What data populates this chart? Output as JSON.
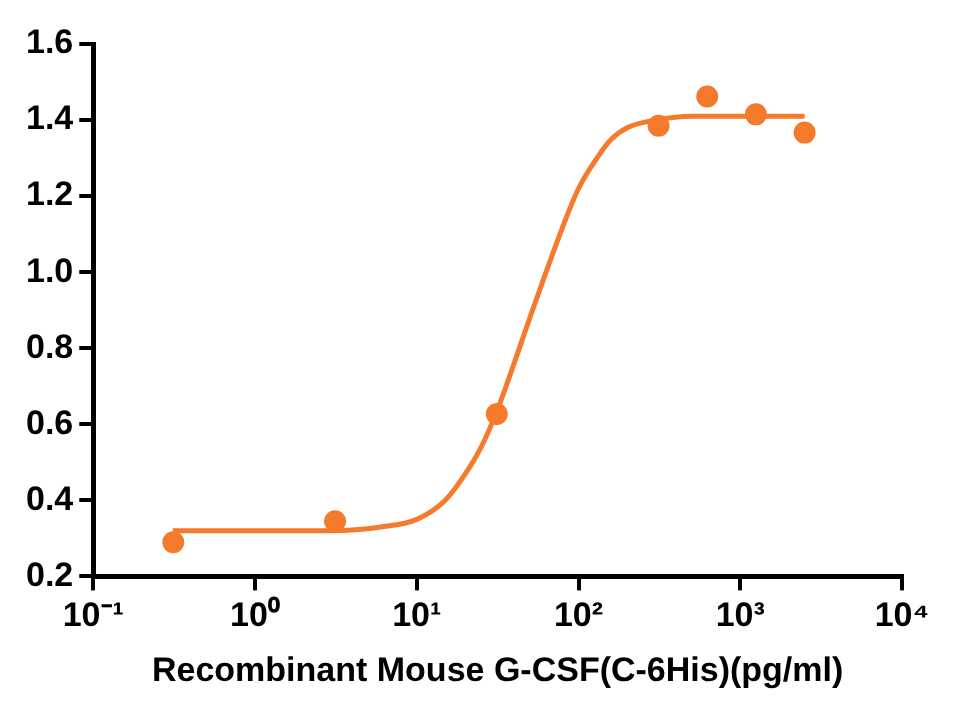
{
  "chart_data": {
    "type": "scatter",
    "xlabel": "Recombinant Mouse G-CSF(C-6His)(pg/ml)",
    "log": "x",
    "grid": false,
    "legend": false,
    "marker": "circle",
    "xlim": [
      0.1,
      10000
    ],
    "xticks": [
      {
        "value": 0.1,
        "label": "10⁻¹"
      },
      {
        "value": 1,
        "label": "10⁰"
      },
      {
        "value": 10,
        "label": "10¹"
      },
      {
        "value": 100,
        "label": "10²"
      },
      {
        "value": 1000,
        "label": "10³"
      },
      {
        "value": 10000,
        "label": "10⁴"
      }
    ],
    "ylim": [
      0.2,
      1.6
    ],
    "yticks": [
      0.2,
      0.4,
      0.6,
      0.8,
      {
        "value": 1,
        "label": "1.0"
      },
      1.2,
      1.4,
      1.6
    ],
    "series": [
      {
        "type": "scatter",
        "color": "#f47b2c",
        "x": [
          0.3125,
          3.125,
          31.25,
          312.5,
          625,
          1250,
          2500
        ],
        "values": [
          0.29,
          0.345,
          0.627,
          1.385,
          1.462,
          1.415,
          1.367
        ]
      },
      {
        "type": "line",
        "color": "#f47b2c",
        "line_style": "solid",
        "marker": "none",
        "x": [
          0.31,
          1,
          3,
          6,
          10,
          15,
          20,
          25,
          31,
          40,
          50,
          63,
          80,
          100,
          130,
          160,
          200,
          300,
          500,
          1000,
          2500
        ],
        "values": [
          0.32,
          0.32,
          0.32,
          0.33,
          0.35,
          0.4,
          0.47,
          0.54,
          0.63,
          0.76,
          0.88,
          1.0,
          1.12,
          1.22,
          1.3,
          1.35,
          1.38,
          1.4,
          1.41,
          1.41,
          1.41
        ]
      }
    ]
  }
}
